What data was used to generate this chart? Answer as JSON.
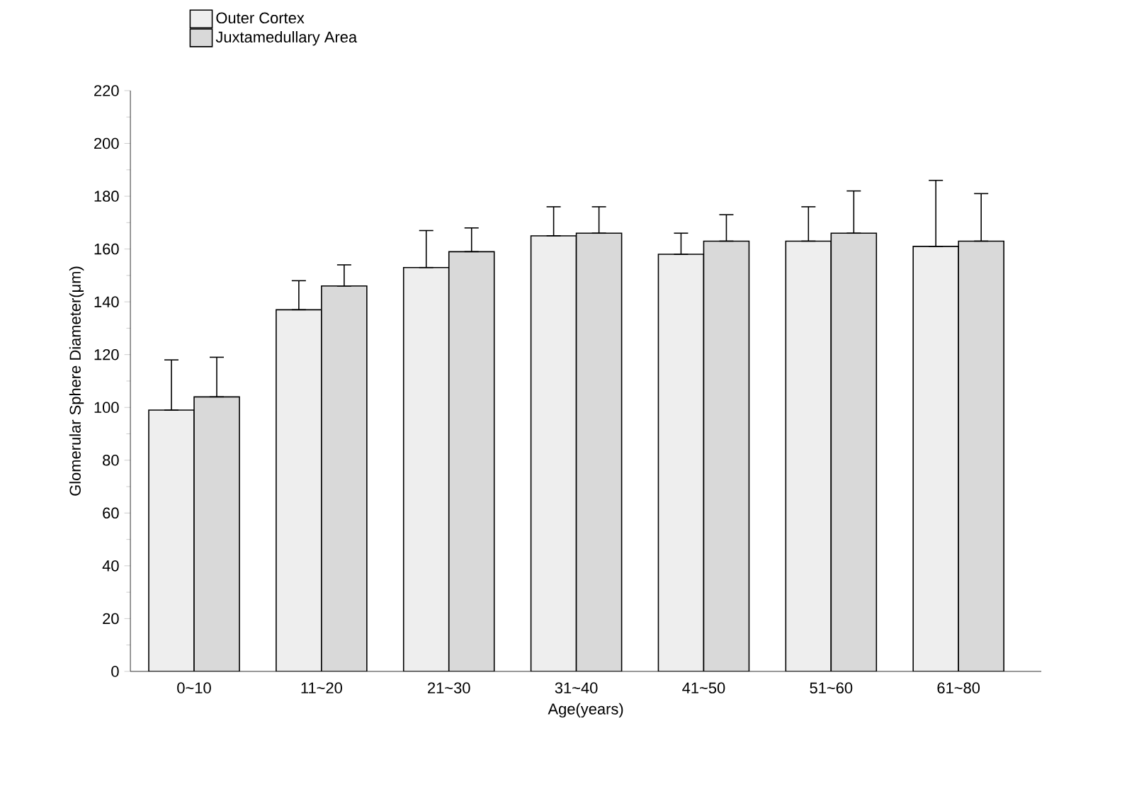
{
  "chart_data": {
    "type": "bar",
    "xlabel": "Age(years)",
    "ylabel": "Glomerular Sphere Diameter(μm)",
    "categories": [
      "0~10",
      "11~20",
      "21~30",
      "31~40",
      "41~50",
      "51~60",
      "61~80"
    ],
    "series": [
      {
        "name": "Outer Cortex",
        "color": "#eeeeee",
        "values": [
          99,
          137,
          153,
          165,
          158,
          163,
          161
        ],
        "errors": [
          [
            99,
            118
          ],
          [
            137,
            148
          ],
          [
            153,
            167
          ],
          [
            165,
            176
          ],
          [
            158,
            166
          ],
          [
            163,
            176
          ],
          [
            161,
            186
          ]
        ]
      },
      {
        "name": "Juxtamedullary Area",
        "color": "#d9d9d9",
        "values": [
          104,
          146,
          159,
          166,
          163,
          166,
          163
        ],
        "errors": [
          [
            104,
            119
          ],
          [
            146,
            154
          ],
          [
            159,
            168
          ],
          [
            166,
            176
          ],
          [
            163,
            173
          ],
          [
            166,
            182
          ],
          [
            163,
            181
          ]
        ]
      }
    ],
    "ylim": [
      0,
      220
    ],
    "yticks": [
      0,
      20,
      40,
      60,
      80,
      100,
      120,
      140,
      160,
      180,
      200,
      220
    ],
    "legend": "top left",
    "grid": false
  }
}
